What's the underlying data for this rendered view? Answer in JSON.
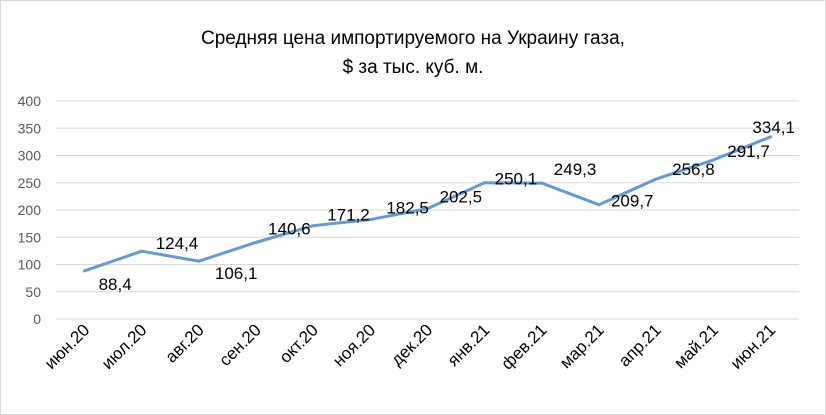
{
  "chart_data": {
    "type": "line",
    "title": "Средняя цена импортируемого на Украину газа,",
    "subtitle": "$ за тыс. куб. м.",
    "categories": [
      "июн.20",
      "июл.20",
      "авг.20",
      "сен.20",
      "окт.20",
      "ноя.20",
      "дек.20",
      "янв.21",
      "фев.21",
      "мар.21",
      "апр.21",
      "май.21",
      "июн.21"
    ],
    "series": [
      {
        "values": [
          88.4,
          124.4,
          106.1,
          140.6,
          171.2,
          182.5,
          202.5,
          250.1,
          249.3,
          209.7,
          256.8,
          291.7,
          334.1
        ],
        "labels": [
          "88,4",
          "124,4",
          "106,1",
          "140,6",
          "171,2",
          "182,5",
          "202,5",
          "250,1",
          "249,3",
          "209,7",
          "256,8",
          "291,7",
          "334,1"
        ],
        "color": "#6699cc"
      }
    ],
    "ylim": [
      0,
      400
    ],
    "yticks": [
      "0",
      "50",
      "100",
      "150",
      "200",
      "250",
      "300",
      "350",
      "400"
    ],
    "grid": true,
    "xlabel": "",
    "ylabel": ""
  }
}
